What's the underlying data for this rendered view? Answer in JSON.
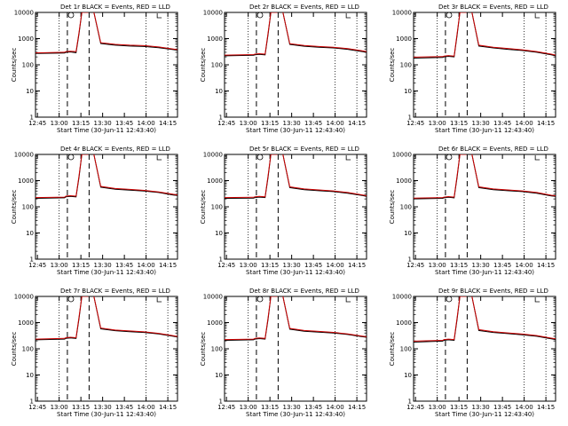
{
  "chart_data": [
    {
      "type": "line",
      "title": "Det 1r BLACK = Events, RED = LLD",
      "xlabel": "Start Time (30-Jun-11 12:43:40)",
      "ylabel": "Counts/sec",
      "x_ticks": [
        "12:45",
        "13:00",
        "13:15",
        "13:30",
        "13:45",
        "14:00",
        "14:15"
      ],
      "y_ticks": [
        "1",
        "10",
        "100",
        "1000",
        "10000"
      ],
      "yscale": "log",
      "ylim": [
        1,
        10000
      ],
      "x": [
        0,
        20,
        21,
        24,
        28,
        30,
        32,
        33,
        36,
        40,
        45,
        55,
        65,
        75,
        85,
        95,
        98
      ],
      "series": [
        {
          "name": "Events",
          "color": "#000000",
          "values": [
            270,
            280,
            300,
            310,
            290,
            1500,
            10000,
            10000,
            10000,
            12000,
            650,
            560,
            520,
            500,
            450,
            380,
            360
          ]
        },
        {
          "name": "LLD",
          "color": "#cc0000",
          "values": [
            285,
            300,
            320,
            330,
            320,
            1700,
            10000,
            10000,
            10000,
            12000,
            700,
            600,
            560,
            540,
            480,
            400,
            380
          ]
        }
      ]
    },
    {
      "type": "line",
      "title": "Det 2r BLACK = Events, RED = LLD",
      "xlabel": "Start Time (30-Jun-11 12:43:40)",
      "ylabel": "Counts/sec",
      "x_ticks": [
        "12:45",
        "13:00",
        "13:15",
        "13:30",
        "13:45",
        "14:00",
        "14:15"
      ],
      "y_ticks": [
        "1",
        "10",
        "100",
        "1000",
        "10000"
      ],
      "yscale": "log",
      "ylim": [
        1,
        10000
      ],
      "x": [
        0,
        20,
        21,
        24,
        28,
        30,
        32,
        33,
        36,
        40,
        45,
        55,
        65,
        75,
        85,
        95,
        98
      ],
      "series": [
        {
          "name": "Events",
          "color": "#000000",
          "values": [
            220,
            230,
            240,
            250,
            240,
            1400,
            10000,
            10000,
            10000,
            12000,
            600,
            510,
            470,
            440,
            390,
            320,
            300
          ]
        },
        {
          "name": "LLD",
          "color": "#cc0000",
          "values": [
            235,
            245,
            255,
            265,
            255,
            1600,
            10000,
            10000,
            10000,
            12000,
            640,
            545,
            500,
            470,
            415,
            340,
            320
          ]
        }
      ]
    },
    {
      "type": "line",
      "title": "Det 3r BLACK = Events, RED = LLD",
      "xlabel": "Start Time (30-Jun-11 12:43:40)",
      "ylabel": "Counts/sec",
      "x_ticks": [
        "12:45",
        "13:00",
        "13:15",
        "13:30",
        "13:45",
        "14:00",
        "14:15"
      ],
      "y_ticks": [
        "1",
        "10",
        "100",
        "1000",
        "10000"
      ],
      "yscale": "log",
      "ylim": [
        1,
        10000
      ],
      "x": [
        0,
        20,
        21,
        24,
        28,
        30,
        32,
        33,
        36,
        40,
        45,
        55,
        65,
        75,
        85,
        95,
        98
      ],
      "series": [
        {
          "name": "Events",
          "color": "#000000",
          "values": [
            180,
            190,
            200,
            210,
            200,
            1300,
            10000,
            10000,
            10000,
            12000,
            520,
            440,
            390,
            350,
            300,
            240,
            220
          ]
        },
        {
          "name": "LLD",
          "color": "#cc0000",
          "values": [
            195,
            205,
            215,
            225,
            215,
            1500,
            10000,
            10000,
            10000,
            12000,
            560,
            470,
            420,
            375,
            320,
            255,
            235
          ]
        }
      ]
    },
    {
      "type": "line",
      "title": "Det 4r BLACK = Events, RED = LLD",
      "xlabel": "Start Time (30-Jun-11 12:43:40)",
      "ylabel": "Counts/sec",
      "x_ticks": [
        "12:45",
        "13:00",
        "13:15",
        "13:30",
        "13:45",
        "14:00",
        "14:15"
      ],
      "y_ticks": [
        "1",
        "10",
        "100",
        "1000",
        "10000"
      ],
      "yscale": "log",
      "ylim": [
        1,
        10000
      ],
      "x": [
        0,
        20,
        21,
        24,
        28,
        30,
        32,
        33,
        36,
        40,
        45,
        55,
        65,
        75,
        85,
        95,
        98
      ],
      "series": [
        {
          "name": "Events",
          "color": "#000000",
          "values": [
            210,
            220,
            240,
            250,
            240,
            1300,
            10000,
            10000,
            10000,
            12000,
            560,
            470,
            430,
            400,
            350,
            280,
            270
          ]
        },
        {
          "name": "LLD",
          "color": "#cc0000",
          "values": [
            225,
            235,
            255,
            265,
            255,
            1500,
            10000,
            10000,
            10000,
            12000,
            600,
            500,
            460,
            425,
            370,
            300,
            285
          ]
        }
      ]
    },
    {
      "type": "line",
      "title": "Det 5r BLACK = Events, RED = LLD",
      "xlabel": "Start Time (30-Jun-11 12:43:40)",
      "ylabel": "Counts/sec",
      "x_ticks": [
        "12:45",
        "13:00",
        "13:15",
        "13:30",
        "13:45",
        "14:00",
        "14:15"
      ],
      "y_ticks": [
        "1",
        "10",
        "100",
        "1000",
        "10000"
      ],
      "yscale": "log",
      "ylim": [
        1,
        10000
      ],
      "x": [
        0,
        20,
        21,
        24,
        28,
        30,
        32,
        33,
        36,
        40,
        45,
        55,
        65,
        75,
        85,
        95,
        98
      ],
      "series": [
        {
          "name": "Events",
          "color": "#000000",
          "values": [
            210,
            215,
            225,
            235,
            225,
            1300,
            10000,
            10000,
            10000,
            12000,
            540,
            450,
            410,
            380,
            330,
            270,
            250
          ]
        },
        {
          "name": "LLD",
          "color": "#cc0000",
          "values": [
            225,
            230,
            240,
            250,
            240,
            1500,
            10000,
            10000,
            10000,
            12000,
            580,
            480,
            440,
            405,
            350,
            285,
            265
          ]
        }
      ]
    },
    {
      "type": "line",
      "title": "Det 6r BLACK = Events, RED = LLD",
      "xlabel": "Start Time (30-Jun-11 12:43:40)",
      "ylabel": "Counts/sec",
      "x_ticks": [
        "12:45",
        "13:00",
        "13:15",
        "13:30",
        "13:45",
        "14:00",
        "14:15"
      ],
      "y_ticks": [
        "1",
        "10",
        "100",
        "1000",
        "10000"
      ],
      "yscale": "log",
      "ylim": [
        1,
        10000
      ],
      "x": [
        0,
        20,
        21,
        24,
        28,
        30,
        32,
        33,
        36,
        40,
        45,
        55,
        65,
        75,
        85,
        95,
        98
      ],
      "series": [
        {
          "name": "Events",
          "color": "#000000",
          "values": [
            200,
            210,
            220,
            230,
            220,
            1300,
            10000,
            10000,
            10000,
            12000,
            540,
            450,
            410,
            380,
            330,
            260,
            250
          ]
        },
        {
          "name": "LLD",
          "color": "#cc0000",
          "values": [
            215,
            225,
            235,
            245,
            235,
            1500,
            10000,
            10000,
            10000,
            12000,
            580,
            480,
            440,
            405,
            350,
            275,
            265
          ]
        }
      ]
    },
    {
      "type": "line",
      "title": "Det 7r BLACK = Events, RED = LLD",
      "xlabel": "Start Time (30-Jun-11 12:43:40)",
      "ylabel": "Counts/sec",
      "x_ticks": [
        "12:45",
        "13:00",
        "13:15",
        "13:30",
        "13:45",
        "14:00",
        "14:15"
      ],
      "y_ticks": [
        "1",
        "10",
        "100",
        "1000",
        "10000"
      ],
      "yscale": "log",
      "ylim": [
        1,
        10000
      ],
      "x": [
        0,
        20,
        21,
        24,
        28,
        30,
        32,
        33,
        36,
        40,
        45,
        55,
        65,
        75,
        85,
        95,
        98
      ],
      "series": [
        {
          "name": "Events",
          "color": "#000000",
          "values": [
            220,
            235,
            250,
            260,
            250,
            1400,
            10000,
            10000,
            10000,
            12000,
            580,
            490,
            450,
            420,
            370,
            300,
            280
          ]
        },
        {
          "name": "LLD",
          "color": "#cc0000",
          "values": [
            235,
            250,
            265,
            275,
            265,
            1600,
            10000,
            10000,
            10000,
            12000,
            620,
            520,
            480,
            445,
            390,
            315,
            295
          ]
        }
      ]
    },
    {
      "type": "line",
      "title": "Det 8r BLACK = Events, RED = LLD",
      "xlabel": "Start Time (30-Jun-11 12:43:40)",
      "ylabel": "Counts/sec",
      "x_ticks": [
        "12:45",
        "13:00",
        "13:15",
        "13:30",
        "13:45",
        "14:00",
        "14:15"
      ],
      "y_ticks": [
        "1",
        "10",
        "100",
        "1000",
        "10000"
      ],
      "yscale": "log",
      "ylim": [
        1,
        10000
      ],
      "x": [
        0,
        20,
        21,
        24,
        28,
        30,
        32,
        33,
        36,
        40,
        45,
        55,
        65,
        75,
        85,
        95,
        98
      ],
      "series": [
        {
          "name": "Events",
          "color": "#000000",
          "values": [
            210,
            220,
            235,
            245,
            235,
            1300,
            10000,
            10000,
            10000,
            12000,
            560,
            470,
            430,
            400,
            350,
            290,
            275
          ]
        },
        {
          "name": "LLD",
          "color": "#cc0000",
          "values": [
            225,
            235,
            250,
            260,
            250,
            1500,
            10000,
            10000,
            10000,
            12000,
            600,
            500,
            460,
            425,
            370,
            305,
            290
          ]
        }
      ]
    },
    {
      "type": "line",
      "title": "Det 9r BLACK = Events, RED = LLD",
      "xlabel": "Start Time (30-Jun-11 12:43:40)",
      "ylabel": "Counts/sec",
      "x_ticks": [
        "12:45",
        "13:00",
        "13:15",
        "13:30",
        "13:45",
        "14:00",
        "14:15"
      ],
      "y_ticks": [
        "1",
        "10",
        "100",
        "1000",
        "10000"
      ],
      "yscale": "log",
      "ylim": [
        1,
        10000
      ],
      "x": [
        0,
        20,
        21,
        24,
        28,
        30,
        32,
        33,
        36,
        40,
        45,
        55,
        65,
        75,
        85,
        95,
        98
      ],
      "series": [
        {
          "name": "Events",
          "color": "#000000",
          "values": [
            180,
            195,
            210,
            220,
            210,
            1300,
            10000,
            10000,
            10000,
            12000,
            500,
            420,
            380,
            340,
            300,
            240,
            225
          ]
        },
        {
          "name": "LLD",
          "color": "#cc0000",
          "values": [
            195,
            210,
            225,
            235,
            225,
            1500,
            10000,
            10000,
            10000,
            12000,
            540,
            450,
            405,
            365,
            320,
            255,
            240
          ]
        }
      ]
    }
  ]
}
